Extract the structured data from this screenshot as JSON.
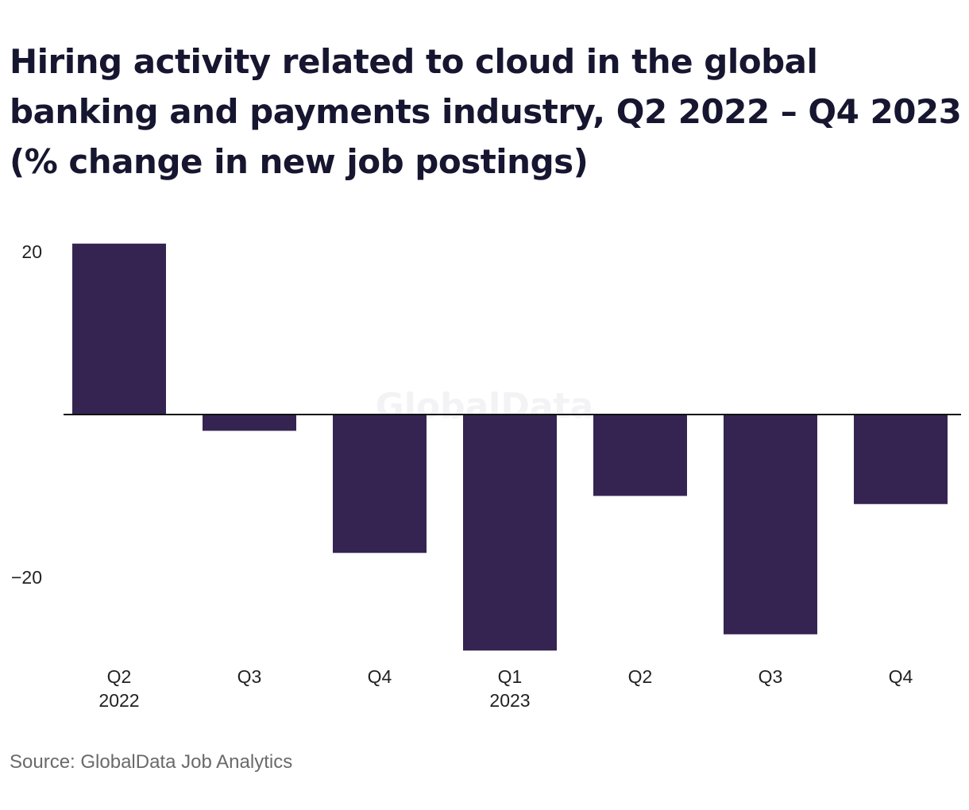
{
  "chart_data": {
    "type": "bar",
    "title": "Hiring activity related to cloud in the global banking and payments industry, Q2 2022 – Q4 2023 (% change in new job postings)",
    "categories": [
      {
        "quarter": "Q2",
        "year": "2022"
      },
      {
        "quarter": "Q3",
        "year": ""
      },
      {
        "quarter": "Q4",
        "year": ""
      },
      {
        "quarter": "Q1",
        "year": "2023"
      },
      {
        "quarter": "Q2",
        "year": ""
      },
      {
        "quarter": "Q3",
        "year": ""
      },
      {
        "quarter": "Q4",
        "year": ""
      }
    ],
    "values": [
      21,
      -2,
      -17,
      -29,
      -10,
      -27,
      -11
    ],
    "yticks": [
      20,
      -20
    ],
    "ytick_labels": [
      "20",
      "−20"
    ],
    "ylim": [
      -29,
      21
    ],
    "bar_color": "#352452",
    "axis_color": "#111111",
    "grid": false,
    "legend": "none"
  },
  "watermark": "GlobalData",
  "source": "Source: GlobalData Job Analytics"
}
